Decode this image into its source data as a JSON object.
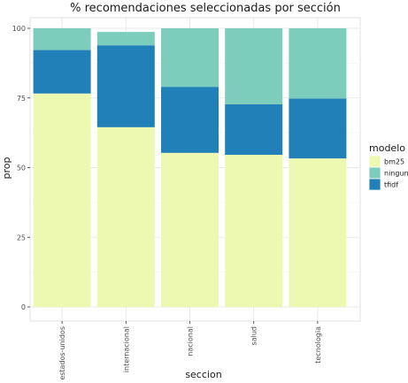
{
  "chart_data": {
    "type": "bar",
    "stacked": true,
    "title": "% recomendaciones seleccionadas por sección",
    "xlabel": "seccion",
    "ylabel": "prop",
    "ylim": [
      0,
      100
    ],
    "yticks": [
      0,
      25,
      50,
      75,
      100
    ],
    "grid": true,
    "legend_position": "right",
    "categories": [
      "estados-unidos",
      "internacional",
      "nacional",
      "salud",
      "tecnologia"
    ],
    "series": [
      {
        "name": "bm25",
        "values": [
          76.6,
          64.5,
          55.3,
          54.6,
          53.3
        ],
        "color": "#edf8b1"
      },
      {
        "name": "tfidf",
        "values": [
          15.6,
          29.4,
          23.7,
          18.1,
          21.5
        ],
        "color": "#2180b8"
      },
      {
        "name": "ninguno",
        "values": [
          7.8,
          4.8,
          21.0,
          27.3,
          25.2
        ],
        "color": "#7dcdbd"
      }
    ],
    "legend": {
      "title": "modelo",
      "entries": [
        "bm25",
        "ninguno",
        "tfidf"
      ]
    }
  }
}
